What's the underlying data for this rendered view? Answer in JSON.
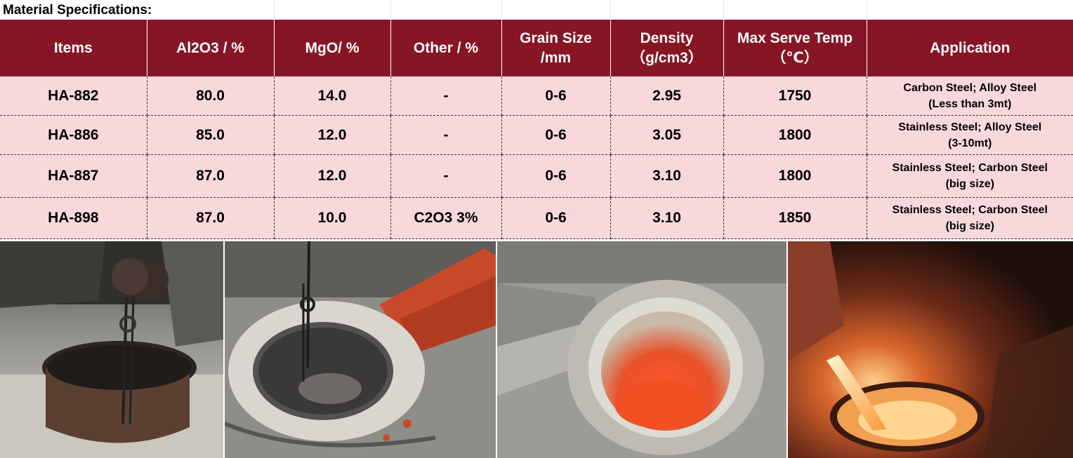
{
  "title": "Material Specifications:",
  "table": {
    "headers": [
      {
        "line1": "Items",
        "line2": ""
      },
      {
        "line1": "Al2O3 / %",
        "line2": ""
      },
      {
        "line1": "MgO/ %",
        "line2": ""
      },
      {
        "line1": "Other / %",
        "line2": ""
      },
      {
        "line1": "Grain Size",
        "line2": "/mm"
      },
      {
        "line1": "Density",
        "line2": "（g/cm3）"
      },
      {
        "line1": "Max Serve Temp",
        "line2": "（℃）"
      },
      {
        "line1": "Application",
        "line2": ""
      }
    ],
    "rows": [
      {
        "item": "HA-882",
        "al2o3": "80.0",
        "mgo": "14.0",
        "other": "-",
        "grain": "0-6",
        "density": "2.95",
        "temp": "1750",
        "app1": "Carbon Steel; Alloy Steel",
        "app2": "(Less than 3mt)"
      },
      {
        "item": "HA-886",
        "al2o3": "85.0",
        "mgo": "12.0",
        "other": "-",
        "grain": "0-6",
        "density": "3.05",
        "temp": "1800",
        "app1": "Stainless Steel; Alloy Steel",
        "app2": "(3-10mt)"
      },
      {
        "item": "HA-887",
        "al2o3": "87.0",
        "mgo": "12.0",
        "other": "-",
        "grain": "0-6",
        "density": "3.10",
        "temp": "1800",
        "app1": "Stainless Steel; Carbon Steel",
        "app2": "(big size)"
      },
      {
        "item": "HA-898",
        "al2o3": "87.0",
        "mgo": "10.0",
        "other": "C2O3 3%",
        "grain": "0-6",
        "density": "3.10",
        "temp": "1850",
        "app1": "Stainless Steel; Carbon Steel",
        "app2": "(big size)"
      }
    ]
  },
  "colors": {
    "header_bg": "#861626",
    "row_bg": "#f9d8dc",
    "molten": "#e8512a"
  }
}
